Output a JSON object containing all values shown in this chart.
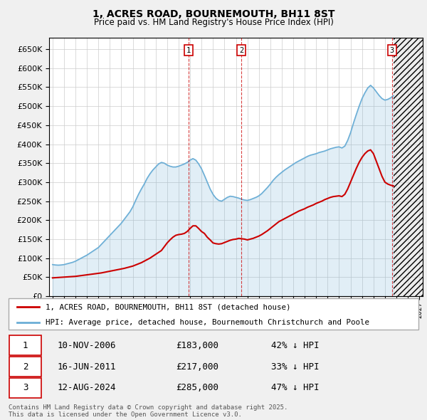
{
  "title": "1, ACRES ROAD, BOURNEMOUTH, BH11 8ST",
  "subtitle": "Price paid vs. HM Land Registry's House Price Index (HPI)",
  "hpi_color": "#6baed6",
  "price_color": "#cc0000",
  "background_color": "#f0f0f0",
  "plot_bg_color": "#ffffff",
  "grid_color": "#cccccc",
  "ylim": [
    0,
    680000
  ],
  "yticks": [
    0,
    50000,
    100000,
    150000,
    200000,
    250000,
    300000,
    350000,
    400000,
    450000,
    500000,
    550000,
    600000,
    650000
  ],
  "xlim_start": 1994.7,
  "xlim_end": 2027.3,
  "transactions": [
    {
      "num": 1,
      "date": "10-NOV-2006",
      "price": 183000,
      "pct": "42% ↓ HPI",
      "x": 2006.86
    },
    {
      "num": 2,
      "date": "16-JUN-2011",
      "price": 217000,
      "pct": "33% ↓ HPI",
      "x": 2011.46
    },
    {
      "num": 3,
      "date": "12-AUG-2024",
      "price": 285000,
      "pct": "47% ↓ HPI",
      "x": 2024.62
    }
  ],
  "legend_line1": "1, ACRES ROAD, BOURNEMOUTH, BH11 8ST (detached house)",
  "legend_line2": "HPI: Average price, detached house, Bournemouth Christchurch and Poole",
  "footer": "Contains HM Land Registry data © Crown copyright and database right 2025.\nThis data is licensed under the Open Government Licence v3.0.",
  "hpi_data_x": [
    1995.0,
    1995.25,
    1995.5,
    1995.75,
    1996.0,
    1996.25,
    1996.5,
    1996.75,
    1997.0,
    1997.25,
    1997.5,
    1997.75,
    1998.0,
    1998.25,
    1998.5,
    1998.75,
    1999.0,
    1999.25,
    1999.5,
    1999.75,
    2000.0,
    2000.25,
    2000.5,
    2000.75,
    2001.0,
    2001.25,
    2001.5,
    2001.75,
    2002.0,
    2002.25,
    2002.5,
    2002.75,
    2003.0,
    2003.25,
    2003.5,
    2003.75,
    2004.0,
    2004.25,
    2004.5,
    2004.75,
    2005.0,
    2005.25,
    2005.5,
    2005.75,
    2006.0,
    2006.25,
    2006.5,
    2006.75,
    2007.0,
    2007.25,
    2007.5,
    2007.75,
    2008.0,
    2008.25,
    2008.5,
    2008.75,
    2009.0,
    2009.25,
    2009.5,
    2009.75,
    2010.0,
    2010.25,
    2010.5,
    2010.75,
    2011.0,
    2011.25,
    2011.5,
    2011.75,
    2012.0,
    2012.25,
    2012.5,
    2012.75,
    2013.0,
    2013.25,
    2013.5,
    2013.75,
    2014.0,
    2014.25,
    2014.5,
    2014.75,
    2015.0,
    2015.25,
    2015.5,
    2015.75,
    2016.0,
    2016.25,
    2016.5,
    2016.75,
    2017.0,
    2017.25,
    2017.5,
    2017.75,
    2018.0,
    2018.25,
    2018.5,
    2018.75,
    2019.0,
    2019.25,
    2019.5,
    2019.75,
    2020.0,
    2020.25,
    2020.5,
    2020.75,
    2021.0,
    2021.25,
    2021.5,
    2021.75,
    2022.0,
    2022.25,
    2022.5,
    2022.75,
    2023.0,
    2023.25,
    2023.5,
    2023.75,
    2024.0,
    2024.25,
    2024.5,
    2024.75
  ],
  "hpi_data_y": [
    83000,
    82000,
    81500,
    82000,
    83000,
    85000,
    87000,
    89000,
    92000,
    96000,
    100000,
    104000,
    108000,
    113000,
    118000,
    123000,
    128000,
    136000,
    144000,
    152000,
    160000,
    168000,
    176000,
    184000,
    192000,
    202000,
    212000,
    222000,
    235000,
    252000,
    268000,
    282000,
    295000,
    310000,
    322000,
    332000,
    340000,
    348000,
    352000,
    350000,
    345000,
    342000,
    340000,
    340000,
    342000,
    345000,
    348000,
    352000,
    358000,
    362000,
    358000,
    348000,
    335000,
    318000,
    300000,
    282000,
    268000,
    258000,
    252000,
    250000,
    255000,
    260000,
    263000,
    262000,
    260000,
    258000,
    255000,
    253000,
    252000,
    254000,
    257000,
    260000,
    264000,
    270000,
    278000,
    286000,
    295000,
    305000,
    313000,
    320000,
    326000,
    332000,
    337000,
    342000,
    347000,
    352000,
    356000,
    360000,
    364000,
    368000,
    371000,
    373000,
    375000,
    378000,
    380000,
    382000,
    385000,
    388000,
    390000,
    392000,
    393000,
    390000,
    395000,
    410000,
    430000,
    455000,
    478000,
    500000,
    520000,
    535000,
    548000,
    555000,
    548000,
    538000,
    528000,
    520000,
    516000,
    518000,
    522000,
    528000
  ],
  "price_data_x": [
    1995.0,
    1995.25,
    1995.5,
    1995.75,
    1996.0,
    1996.25,
    1996.5,
    1996.75,
    1997.0,
    1997.25,
    1997.5,
    1997.75,
    1998.0,
    1998.25,
    1998.5,
    1998.75,
    1999.0,
    1999.25,
    1999.5,
    1999.75,
    2000.0,
    2000.25,
    2000.5,
    2000.75,
    2001.0,
    2001.25,
    2001.5,
    2001.75,
    2002.0,
    2002.25,
    2002.5,
    2002.75,
    2003.0,
    2003.25,
    2003.5,
    2003.75,
    2004.0,
    2004.25,
    2004.5,
    2004.75,
    2005.0,
    2005.25,
    2005.5,
    2005.75,
    2006.0,
    2006.25,
    2006.5,
    2006.75,
    2007.0,
    2007.25,
    2007.5,
    2007.75,
    2008.0,
    2008.25,
    2008.5,
    2008.75,
    2009.0,
    2009.25,
    2009.5,
    2009.75,
    2010.0,
    2010.25,
    2010.5,
    2010.75,
    2011.0,
    2011.25,
    2011.5,
    2011.75,
    2012.0,
    2012.25,
    2012.5,
    2012.75,
    2013.0,
    2013.25,
    2013.5,
    2013.75,
    2014.0,
    2014.25,
    2014.5,
    2014.75,
    2015.0,
    2015.25,
    2015.5,
    2015.75,
    2016.0,
    2016.25,
    2016.5,
    2016.75,
    2017.0,
    2017.25,
    2017.5,
    2017.75,
    2018.0,
    2018.25,
    2018.5,
    2018.75,
    2019.0,
    2019.25,
    2019.5,
    2019.75,
    2020.0,
    2020.25,
    2020.5,
    2020.75,
    2021.0,
    2021.25,
    2021.5,
    2021.75,
    2022.0,
    2022.25,
    2022.5,
    2022.75,
    2023.0,
    2023.25,
    2023.5,
    2023.75,
    2024.0,
    2024.25,
    2024.5,
    2024.75
  ],
  "price_data_y": [
    48000,
    48500,
    49000,
    49500,
    50000,
    50500,
    51000,
    51500,
    52000,
    53000,
    54000,
    55000,
    56000,
    57000,
    58000,
    59000,
    60000,
    61000,
    62500,
    64000,
    65500,
    67000,
    68500,
    70000,
    71500,
    73000,
    75000,
    77000,
    79000,
    82000,
    85000,
    88000,
    92000,
    96000,
    100000,
    105000,
    110000,
    115000,
    120000,
    130000,
    140000,
    148000,
    155000,
    160000,
    162000,
    163000,
    165000,
    170000,
    178000,
    185000,
    185000,
    178000,
    170000,
    165000,
    155000,
    148000,
    140000,
    138000,
    137000,
    138000,
    141000,
    144000,
    147000,
    149000,
    150000,
    152000,
    151000,
    150000,
    148000,
    150000,
    152000,
    155000,
    158000,
    162000,
    167000,
    172000,
    178000,
    184000,
    190000,
    196000,
    200000,
    204000,
    208000,
    212000,
    216000,
    220000,
    224000,
    227000,
    230000,
    234000,
    237000,
    240000,
    244000,
    247000,
    250000,
    254000,
    257000,
    260000,
    262000,
    263000,
    264000,
    262000,
    268000,
    282000,
    300000,
    318000,
    336000,
    352000,
    365000,
    375000,
    382000,
    385000,
    375000,
    355000,
    335000,
    315000,
    300000,
    295000,
    292000,
    290000
  ]
}
